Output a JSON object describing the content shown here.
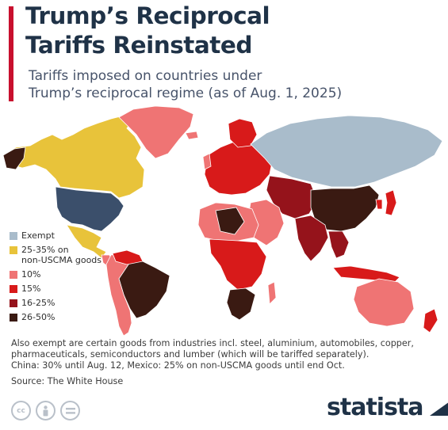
{
  "header": {
    "title_line1": "Trump’s Reciprocal",
    "title_line2": "Tariffs Reinstated",
    "subtitle_line1": "Tariffs imposed on countries under",
    "subtitle_line2": "Trump’s reciprocal regime (as of Aug. 1, 2025)",
    "accent_color": "#c8102e"
  },
  "legend": [
    {
      "label": "Exempt",
      "color": "#a9bccb"
    },
    {
      "label": "25-35% on\nnon-USCMA goods",
      "color": "#e8c33a"
    },
    {
      "label": "10%",
      "color": "#ef7474"
    },
    {
      "label": "15%",
      "color": "#d81a1a"
    },
    {
      "label": "16-25%",
      "color": "#95131b"
    },
    {
      "label": "26-50%",
      "color": "#3a1a12"
    }
  ],
  "footnote": {
    "line1": "Also exempt are certain goods from industries incl. steel, aluminium, automobiles, copper,",
    "line2": "pharmaceuticals, semiconductors and lumber (which will be tariffed separately).",
    "line3": "China: 30% until Aug. 12, Mexico: 25% on non-USCMA goods until end Oct."
  },
  "source": "Source: The White House",
  "brand": {
    "name": "statista",
    "color": "#1f3247"
  },
  "license_icons": [
    "cc-icon",
    "person-icon",
    "equals-icon"
  ],
  "map": {
    "ocean_color": "#ffffff",
    "border_color": "#ffffff"
  }
}
